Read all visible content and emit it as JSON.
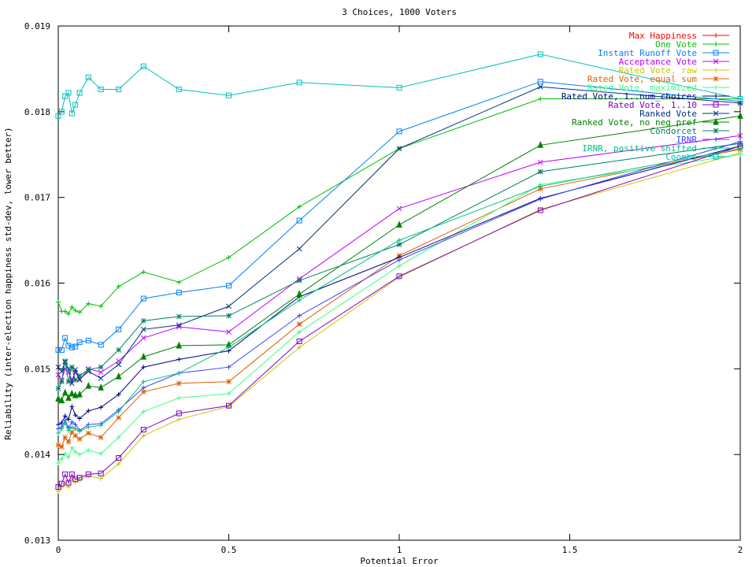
{
  "chart_data": {
    "type": "line",
    "title": "3 Choices, 1000 Voters",
    "xlabel": "Potential Error",
    "ylabel": "Reliability (inter-election happiness std-dev, lower better)",
    "xlim": [
      0,
      2
    ],
    "ylim": [
      0.013,
      0.019
    ],
    "x_ticks": [
      0,
      0.5,
      1,
      1.5,
      2
    ],
    "x_tick_labels": [
      "0",
      "0.5",
      "1",
      "1.5",
      "2"
    ],
    "y_ticks": [
      0.013,
      0.014,
      0.015,
      0.016,
      0.017,
      0.018,
      0.019
    ],
    "y_tick_labels": [
      "0.013",
      "0.014",
      "0.015",
      "0.016",
      "0.017",
      "0.018",
      "0.019"
    ],
    "grid": false,
    "legend_position": "top-right",
    "x": [
      0,
      0.01,
      0.02,
      0.03,
      0.04,
      0.05,
      0.0625,
      0.0884,
      0.125,
      0.177,
      0.25,
      0.354,
      0.5,
      0.707,
      1,
      1.414,
      2
    ],
    "series": [
      {
        "name": "Max Happiness",
        "color": "#ff0000",
        "marker": "+",
        "values": [
          null,
          null,
          null,
          null,
          null,
          null,
          null,
          null,
          null,
          null,
          null,
          null,
          null,
          null,
          null,
          null,
          null
        ]
      },
      {
        "name": "One Vote",
        "color": "#00c000",
        "marker": "+",
        "values": [
          0.01578,
          0.01567,
          0.01567,
          0.01564,
          0.01572,
          0.01568,
          0.01566,
          0.01576,
          0.01573,
          0.01596,
          0.01613,
          0.01601,
          0.0163,
          0.01689,
          0.01757,
          0.01815,
          0.01815
        ]
      },
      {
        "name": "Instant Runoff Vote",
        "color": "#0080ff",
        "marker": "square",
        "values": [
          0.01522,
          0.01522,
          0.01536,
          0.01527,
          0.01525,
          0.01526,
          0.01531,
          0.01533,
          0.01528,
          0.01546,
          0.01582,
          0.01589,
          0.01597,
          0.01673,
          0.01777,
          0.01835,
          0.01812
        ]
      },
      {
        "name": "Acceptance Vote",
        "color": "#c000ff",
        "marker": "x",
        "values": [
          0.01493,
          0.01487,
          0.015,
          0.01496,
          0.01487,
          0.01496,
          0.01487,
          0.015,
          0.01496,
          0.01509,
          0.01536,
          0.01549,
          0.01543,
          0.01605,
          0.01687,
          0.01741,
          0.01772
        ]
      },
      {
        "name": "Rated Vote, raw",
        "color": "#c8c800",
        "marker": "+",
        "values": [
          0.01357,
          0.01362,
          0.01366,
          0.01362,
          0.01372,
          0.01368,
          0.0137,
          0.01375,
          0.01372,
          0.01389,
          0.01422,
          0.01441,
          0.01456,
          0.01525,
          0.01607,
          0.01686,
          0.01752
        ]
      },
      {
        "name": "Rated Vote, equal sum",
        "color": "#e06000",
        "marker": "*",
        "values": [
          0.01411,
          0.01409,
          0.0142,
          0.01415,
          0.01426,
          0.01422,
          0.01418,
          0.01425,
          0.0142,
          0.01443,
          0.01473,
          0.01483,
          0.01485,
          0.01552,
          0.01632,
          0.0171,
          0.01756
        ]
      },
      {
        "name": "Rated Vote, maximized",
        "color": "#40ff80",
        "marker": "+",
        "values": [
          0.0139,
          0.01395,
          0.01401,
          0.01397,
          0.01408,
          0.01403,
          0.014,
          0.01405,
          0.01401,
          0.0142,
          0.0145,
          0.01466,
          0.01471,
          0.01543,
          0.0162,
          0.01715,
          0.0175
        ]
      },
      {
        "name": "Rated Vote, 1..num_choices",
        "color": "#000080",
        "marker": "+",
        "values": [
          0.01435,
          0.01437,
          0.01445,
          0.01441,
          0.01456,
          0.01446,
          0.01442,
          0.01451,
          0.01455,
          0.0147,
          0.01502,
          0.01511,
          0.01521,
          0.01584,
          0.0163,
          0.01699,
          0.0176
        ]
      },
      {
        "name": "Rated Vote, 1..10",
        "color": "#8000c0",
        "marker": "square",
        "values": [
          0.01362,
          0.01366,
          0.01377,
          0.01367,
          0.01377,
          0.01371,
          0.01373,
          0.01377,
          0.01378,
          0.01396,
          0.01429,
          0.01448,
          0.01457,
          0.01532,
          0.01608,
          0.01685,
          0.0176
        ]
      },
      {
        "name": "Ranked Vote",
        "color": "#003080",
        "marker": "x",
        "values": [
          0.01502,
          0.01497,
          0.01508,
          0.015,
          0.01483,
          0.01499,
          0.01488,
          0.01497,
          0.01489,
          0.01505,
          0.01546,
          0.01551,
          0.01573,
          0.0164,
          0.01757,
          0.01829,
          0.0181
        ]
      },
      {
        "name": "Ranked Vote, no neg pref",
        "color": "#008000",
        "marker": "triangle",
        "values": [
          0.01465,
          0.01463,
          0.01472,
          0.01466,
          0.01471,
          0.01469,
          0.0147,
          0.0148,
          0.01478,
          0.01491,
          0.01514,
          0.01527,
          0.01528,
          0.01587,
          0.01668,
          0.01761,
          0.01795
        ]
      },
      {
        "name": "Condorcet",
        "color": "#008060",
        "marker": "*",
        "values": [
          0.01477,
          0.01485,
          0.01509,
          0.01485,
          0.01502,
          0.01487,
          0.01492,
          0.01499,
          0.01502,
          0.01522,
          0.01556,
          0.01561,
          0.01562,
          0.01603,
          0.01645,
          0.0173,
          0.01763
        ]
      },
      {
        "name": "IRNR",
        "color": "#4040ff",
        "marker": "+",
        "values": [
          0.0143,
          0.01432,
          0.0144,
          0.01431,
          0.01438,
          0.01435,
          0.01428,
          0.01435,
          0.01436,
          0.01452,
          0.01478,
          0.01495,
          0.01502,
          0.01562,
          0.01627,
          0.01698,
          0.01765
        ]
      },
      {
        "name": "IRNR, positive shifted",
        "color": "#00c080",
        "marker": "+",
        "values": [
          0.01425,
          0.0143,
          0.01437,
          0.01428,
          0.01432,
          0.0143,
          0.01427,
          0.01432,
          0.01434,
          0.0145,
          0.01485,
          0.01495,
          0.01525,
          0.0158,
          0.0165,
          0.01713,
          0.01757
        ]
      },
      {
        "name": "Coombs",
        "color": "#00c0c0",
        "marker": "square",
        "values": [
          0.01795,
          0.018,
          0.01818,
          0.01822,
          0.01798,
          0.01808,
          0.01822,
          0.0184,
          0.01826,
          0.01826,
          0.01853,
          0.01826,
          0.01819,
          0.01834,
          0.01828,
          0.01867,
          0.01815
        ]
      }
    ]
  }
}
